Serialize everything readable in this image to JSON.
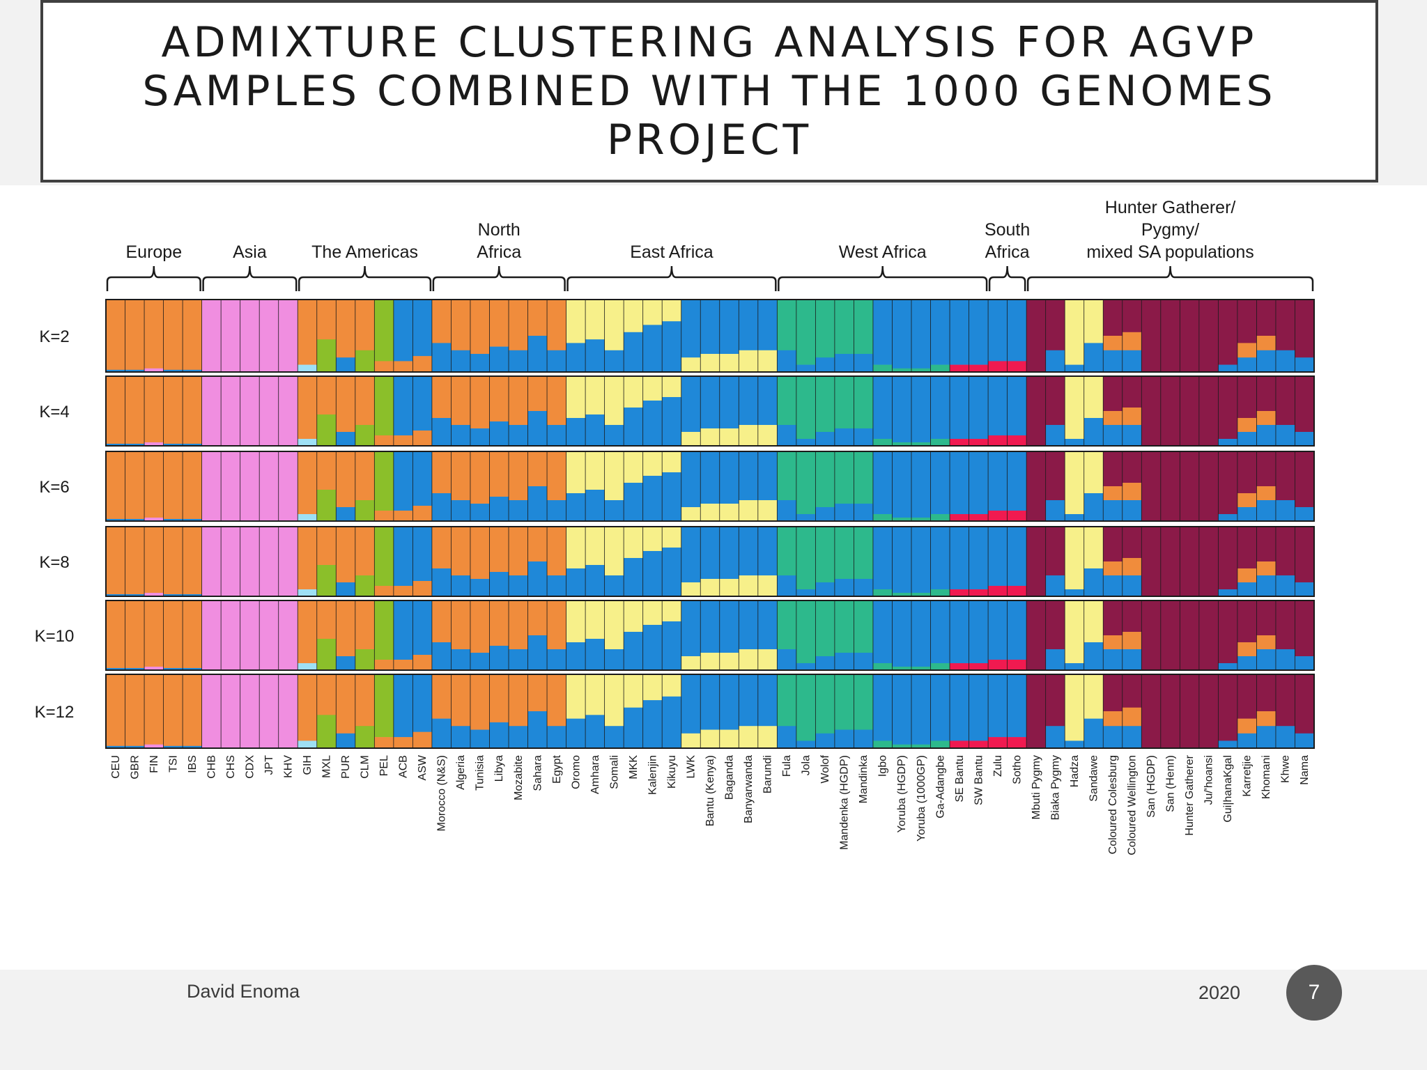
{
  "slide": {
    "title": "ADMIXTURE CLUSTERING ANALYSIS FOR AGVP SAMPLES COMBINED WITH THE 1000 GENOMES PROJECT",
    "author": "David Enoma",
    "year": "2020",
    "page_number": "7"
  },
  "chart_data": {
    "type": "stacked-bar",
    "description_source": "ADMIXTURE ancestry proportions, each column a population, rows are K values",
    "colors": {
      "european": "#f08c3c",
      "african": "#1f88d8",
      "eastasian": "#f08ee0",
      "maroon": "#8b1a48",
      "yellow": "#f7f08a",
      "green": "#2db98c",
      "purple": "#7a1080",
      "gray": "#8c8c8c",
      "lightblue": "#9ee0f5",
      "olive": "#8bbf2a",
      "lavender": "#a58ef0",
      "red": "#f01a50"
    },
    "region_groups": [
      {
        "label": "Europe"
      },
      {
        "label": "Asia"
      },
      {
        "label": "The Americas"
      },
      {
        "label": "North Africa"
      },
      {
        "label": "East Africa"
      },
      {
        "label": "West Africa"
      },
      {
        "label": "South Africa"
      },
      {
        "label": "Hunter Gatherer/ Pygmy/mixed SA populations"
      }
    ],
    "rows": [
      {
        "label": "K=2"
      },
      {
        "label": "K=4"
      },
      {
        "label": "K=6"
      },
      {
        "label": "K=8"
      },
      {
        "label": "K=10"
      },
      {
        "label": "K=12"
      }
    ],
    "populations": [
      {
        "label": "CEU",
        "region": "Europe",
        "composition": [
          {
            "c": "european",
            "f": 0.97
          },
          {
            "c": "african",
            "f": 0.03
          }
        ]
      },
      {
        "label": "GBR",
        "region": "Europe",
        "composition": [
          {
            "c": "european",
            "f": 0.97
          },
          {
            "c": "african",
            "f": 0.03
          }
        ]
      },
      {
        "label": "FIN",
        "region": "Europe",
        "composition": [
          {
            "c": "european",
            "f": 0.95
          },
          {
            "c": "eastasian",
            "f": 0.05
          }
        ]
      },
      {
        "label": "TSI",
        "region": "Europe",
        "composition": [
          {
            "c": "european",
            "f": 0.97
          },
          {
            "c": "african",
            "f": 0.03
          }
        ]
      },
      {
        "label": "IBS",
        "region": "Europe",
        "composition": [
          {
            "c": "european",
            "f": 0.97
          },
          {
            "c": "african",
            "f": 0.03
          }
        ]
      },
      {
        "label": "CHB",
        "region": "Asia",
        "composition": [
          {
            "c": "eastasian",
            "f": 1.0
          }
        ]
      },
      {
        "label": "CHS",
        "region": "Asia",
        "composition": [
          {
            "c": "eastasian",
            "f": 1.0
          }
        ]
      },
      {
        "label": "CDX",
        "region": "Asia",
        "composition": [
          {
            "c": "eastasian",
            "f": 1.0
          }
        ]
      },
      {
        "label": "JPT",
        "region": "Asia",
        "composition": [
          {
            "c": "eastasian",
            "f": 1.0
          }
        ]
      },
      {
        "label": "KHV",
        "region": "Asia",
        "composition": [
          {
            "c": "eastasian",
            "f": 1.0
          }
        ]
      },
      {
        "label": "GIH",
        "region": "The Americas",
        "composition": [
          {
            "c": "european",
            "f": 0.9
          },
          {
            "c": "lightblue",
            "f": 0.1
          }
        ]
      },
      {
        "label": "MXL",
        "region": "The Americas",
        "composition": [
          {
            "c": "european",
            "f": 0.55
          },
          {
            "c": "olive",
            "f": 0.45
          }
        ]
      },
      {
        "label": "PUR",
        "region": "The Americas",
        "composition": [
          {
            "c": "european",
            "f": 0.8
          },
          {
            "c": "african",
            "f": 0.2
          }
        ]
      },
      {
        "label": "CLM",
        "region": "The Americas",
        "composition": [
          {
            "c": "european",
            "f": 0.7
          },
          {
            "c": "olive",
            "f": 0.3
          }
        ]
      },
      {
        "label": "PEL",
        "region": "The Americas",
        "composition": [
          {
            "c": "olive",
            "f": 0.85
          },
          {
            "c": "european",
            "f": 0.15
          }
        ]
      },
      {
        "label": "ACB",
        "region": "The Americas",
        "composition": [
          {
            "c": "african",
            "f": 0.85
          },
          {
            "c": "european",
            "f": 0.15
          }
        ]
      },
      {
        "label": "ASW",
        "region": "The Americas",
        "composition": [
          {
            "c": "african",
            "f": 0.78
          },
          {
            "c": "european",
            "f": 0.22
          }
        ]
      },
      {
        "label": "Morocco (N&S)",
        "region": "North Africa",
        "composition": [
          {
            "c": "european",
            "f": 0.6
          },
          {
            "c": "african",
            "f": 0.4
          }
        ]
      },
      {
        "label": "Algeria",
        "region": "North Africa",
        "composition": [
          {
            "c": "european",
            "f": 0.7
          },
          {
            "c": "african",
            "f": 0.3
          }
        ]
      },
      {
        "label": "Tunisia",
        "region": "North Africa",
        "composition": [
          {
            "c": "european",
            "f": 0.75
          },
          {
            "c": "african",
            "f": 0.25
          }
        ]
      },
      {
        "label": "Libya",
        "region": "North Africa",
        "composition": [
          {
            "c": "european",
            "f": 0.65
          },
          {
            "c": "african",
            "f": 0.35
          }
        ]
      },
      {
        "label": "Mozabite",
        "region": "North Africa",
        "composition": [
          {
            "c": "european",
            "f": 0.7
          },
          {
            "c": "african",
            "f": 0.3
          }
        ]
      },
      {
        "label": "Sahara",
        "region": "North Africa",
        "composition": [
          {
            "c": "european",
            "f": 0.5
          },
          {
            "c": "african",
            "f": 0.5
          }
        ]
      },
      {
        "label": "Egypt",
        "region": "North Africa",
        "composition": [
          {
            "c": "european",
            "f": 0.7
          },
          {
            "c": "african",
            "f": 0.3
          }
        ]
      },
      {
        "label": "Oromo",
        "region": "East Africa",
        "composition": [
          {
            "c": "yellow",
            "f": 0.6
          },
          {
            "c": "african",
            "f": 0.4
          }
        ]
      },
      {
        "label": "Amhara",
        "region": "East Africa",
        "composition": [
          {
            "c": "yellow",
            "f": 0.55
          },
          {
            "c": "african",
            "f": 0.45
          }
        ]
      },
      {
        "label": "Somali",
        "region": "East Africa",
        "composition": [
          {
            "c": "yellow",
            "f": 0.7
          },
          {
            "c": "african",
            "f": 0.3
          }
        ]
      },
      {
        "label": "MKK",
        "region": "East Africa",
        "composition": [
          {
            "c": "yellow",
            "f": 0.45
          },
          {
            "c": "african",
            "f": 0.55
          }
        ]
      },
      {
        "label": "Kalenjin",
        "region": "East Africa",
        "composition": [
          {
            "c": "yellow",
            "f": 0.35
          },
          {
            "c": "african",
            "f": 0.65
          }
        ]
      },
      {
        "label": "Kikuyu",
        "region": "East Africa",
        "composition": [
          {
            "c": "yellow",
            "f": 0.3
          },
          {
            "c": "african",
            "f": 0.7
          }
        ]
      },
      {
        "label": "LWK",
        "region": "East Africa",
        "composition": [
          {
            "c": "african",
            "f": 0.8
          },
          {
            "c": "yellow",
            "f": 0.2
          }
        ]
      },
      {
        "label": "Bantu (Kenya)",
        "region": "East Africa",
        "composition": [
          {
            "c": "african",
            "f": 0.75
          },
          {
            "c": "yellow",
            "f": 0.25
          }
        ]
      },
      {
        "label": "Baganda",
        "region": "East Africa",
        "composition": [
          {
            "c": "african",
            "f": 0.75
          },
          {
            "c": "yellow",
            "f": 0.25
          }
        ]
      },
      {
        "label": "Banyarwanda",
        "region": "East Africa",
        "composition": [
          {
            "c": "african",
            "f": 0.7
          },
          {
            "c": "yellow",
            "f": 0.3
          }
        ]
      },
      {
        "label": "Barundi",
        "region": "East Africa",
        "composition": [
          {
            "c": "african",
            "f": 0.7
          },
          {
            "c": "yellow",
            "f": 0.3
          }
        ]
      },
      {
        "label": "Fula",
        "region": "West Africa",
        "composition": [
          {
            "c": "green",
            "f": 0.7
          },
          {
            "c": "african",
            "f": 0.3
          }
        ]
      },
      {
        "label": "Jola",
        "region": "West Africa",
        "composition": [
          {
            "c": "green",
            "f": 0.9
          },
          {
            "c": "african",
            "f": 0.1
          }
        ]
      },
      {
        "label": "Wolof",
        "region": "West Africa",
        "composition": [
          {
            "c": "green",
            "f": 0.8
          },
          {
            "c": "african",
            "f": 0.2
          }
        ]
      },
      {
        "label": "Mandenka (HGDP)",
        "region": "West Africa",
        "composition": [
          {
            "c": "green",
            "f": 0.75
          },
          {
            "c": "african",
            "f": 0.25
          }
        ]
      },
      {
        "label": "Mandinka",
        "region": "West Africa",
        "composition": [
          {
            "c": "green",
            "f": 0.75
          },
          {
            "c": "african",
            "f": 0.25
          }
        ]
      },
      {
        "label": "Igbo",
        "region": "West Africa",
        "composition": [
          {
            "c": "african",
            "f": 0.9
          },
          {
            "c": "green",
            "f": 0.1
          }
        ]
      },
      {
        "label": "Yoruba (HGDP)",
        "region": "West Africa",
        "composition": [
          {
            "c": "african",
            "f": 0.95
          },
          {
            "c": "green",
            "f": 0.05
          }
        ]
      },
      {
        "label": "Yoruba (1000GP)",
        "region": "West Africa",
        "composition": [
          {
            "c": "african",
            "f": 0.95
          },
          {
            "c": "green",
            "f": 0.05
          }
        ]
      },
      {
        "label": "Ga-Adangbe",
        "region": "West Africa",
        "composition": [
          {
            "c": "african",
            "f": 0.9
          },
          {
            "c": "green",
            "f": 0.1
          }
        ]
      },
      {
        "label": "SE Bantu",
        "region": "West Africa",
        "composition": [
          {
            "c": "african",
            "f": 0.9
          },
          {
            "c": "red",
            "f": 0.1
          }
        ]
      },
      {
        "label": "SW Bantu",
        "region": "West Africa",
        "composition": [
          {
            "c": "african",
            "f": 0.9
          },
          {
            "c": "red",
            "f": 0.1
          }
        ]
      },
      {
        "label": "Zulu",
        "region": "South Africa",
        "composition": [
          {
            "c": "african",
            "f": 0.85
          },
          {
            "c": "red",
            "f": 0.15
          }
        ]
      },
      {
        "label": "Sotho",
        "region": "South Africa",
        "composition": [
          {
            "c": "african",
            "f": 0.85
          },
          {
            "c": "red",
            "f": 0.15
          }
        ]
      },
      {
        "label": "Mbuti Pygmy",
        "region": "Hunter Gatherer/ Pygmy/mixed SA populations",
        "composition": [
          {
            "c": "maroon",
            "f": 1.0
          }
        ]
      },
      {
        "label": "Biaka Pygmy",
        "region": "Hunter Gatherer/ Pygmy/mixed SA populations",
        "composition": [
          {
            "c": "maroon",
            "f": 0.7
          },
          {
            "c": "african",
            "f": 0.3
          }
        ]
      },
      {
        "label": "Hadza",
        "region": "Hunter Gatherer/ Pygmy/mixed SA populations",
        "composition": [
          {
            "c": "yellow",
            "f": 0.9
          },
          {
            "c": "african",
            "f": 0.1
          }
        ]
      },
      {
        "label": "Sandawe",
        "region": "Hunter Gatherer/ Pygmy/mixed SA populations",
        "composition": [
          {
            "c": "yellow",
            "f": 0.6
          },
          {
            "c": "african",
            "f": 0.4
          }
        ]
      },
      {
        "label": "Coloured Colesburg",
        "region": "Hunter Gatherer/ Pygmy/mixed SA populations",
        "composition": [
          {
            "c": "maroon",
            "f": 0.5
          },
          {
            "c": "european",
            "f": 0.2
          },
          {
            "c": "african",
            "f": 0.3
          }
        ]
      },
      {
        "label": "Coloured Wellington",
        "region": "Hunter Gatherer/ Pygmy/mixed SA populations",
        "composition": [
          {
            "c": "maroon",
            "f": 0.45
          },
          {
            "c": "european",
            "f": 0.25
          },
          {
            "c": "african",
            "f": 0.3
          }
        ]
      },
      {
        "label": "San (HGDP)",
        "region": "Hunter Gatherer/ Pygmy/mixed SA populations",
        "composition": [
          {
            "c": "maroon",
            "f": 1.0
          }
        ]
      },
      {
        "label": "San (Henn)",
        "region": "Hunter Gatherer/ Pygmy/mixed SA populations",
        "composition": [
          {
            "c": "maroon",
            "f": 1.0
          }
        ]
      },
      {
        "label": "Hunter Gatherer",
        "region": "Hunter Gatherer/ Pygmy/mixed SA populations",
        "composition": [
          {
            "c": "maroon",
            "f": 1.0
          }
        ]
      },
      {
        "label": "Ju/'hoansi",
        "region": "Hunter Gatherer/ Pygmy/mixed SA populations",
        "composition": [
          {
            "c": "maroon",
            "f": 1.0
          }
        ]
      },
      {
        "label": "Gui|hanaKgal",
        "region": "Hunter Gatherer/ Pygmy/mixed SA populations",
        "composition": [
          {
            "c": "maroon",
            "f": 0.9
          },
          {
            "c": "african",
            "f": 0.1
          }
        ]
      },
      {
        "label": "Karretjie",
        "region": "Hunter Gatherer/ Pygmy/mixed SA populations",
        "composition": [
          {
            "c": "maroon",
            "f": 0.6
          },
          {
            "c": "european",
            "f": 0.2
          },
          {
            "c": "african",
            "f": 0.2
          }
        ]
      },
      {
        "label": "Khomani",
        "region": "Hunter Gatherer/ Pygmy/mixed SA populations",
        "composition": [
          {
            "c": "maroon",
            "f": 0.5
          },
          {
            "c": "european",
            "f": 0.2
          },
          {
            "c": "african",
            "f": 0.3
          }
        ]
      },
      {
        "label": "Khwe",
        "region": "Hunter Gatherer/ Pygmy/mixed SA populations",
        "composition": [
          {
            "c": "maroon",
            "f": 0.7
          },
          {
            "c": "african",
            "f": 0.3
          }
        ]
      },
      {
        "label": "Nama",
        "region": "Hunter Gatherer/ Pygmy/mixed SA populations",
        "composition": [
          {
            "c": "maroon",
            "f": 0.8
          },
          {
            "c": "african",
            "f": 0.2
          }
        ]
      }
    ],
    "grid": false,
    "legend": "none"
  }
}
